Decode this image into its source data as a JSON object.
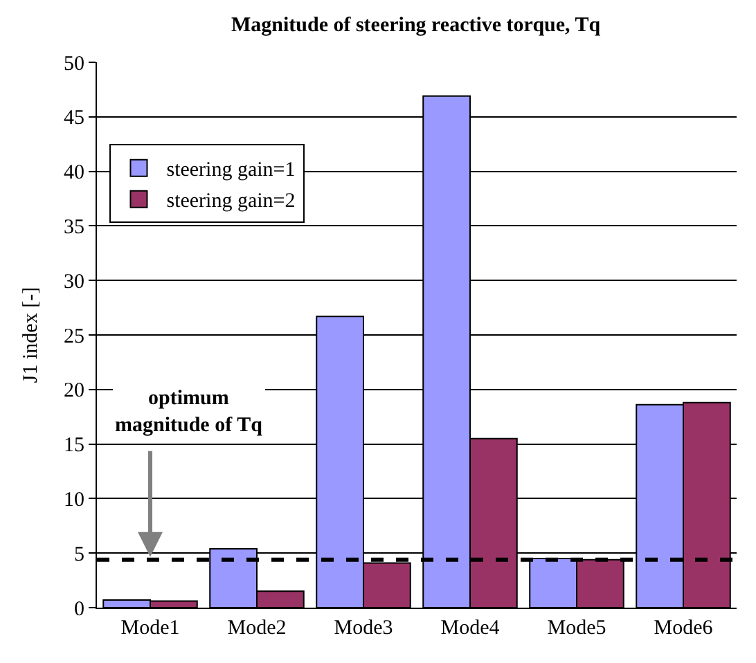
{
  "chart_data": {
    "type": "bar",
    "title": "Magnitude of steering reactive torque, Tq",
    "ylabel": "J1 index [-]",
    "categories": [
      "Mode1",
      "Mode2",
      "Mode3",
      "Mode4",
      "Mode5",
      "Mode6"
    ],
    "series": [
      {
        "name": "steering gain=1",
        "color": "#9999ff",
        "values": [
          0.7,
          5.4,
          26.7,
          46.9,
          4.5,
          18.6
        ]
      },
      {
        "name": "steering gain=2",
        "color": "#993366",
        "values": [
          0.6,
          1.5,
          4.1,
          15.5,
          4.4,
          18.8
        ]
      }
    ],
    "ylim": [
      0,
      50
    ],
    "yticks": [
      0,
      5,
      10,
      15,
      20,
      25,
      30,
      35,
      40,
      45,
      50
    ],
    "grid": "y",
    "legend": "top left",
    "ref_lines": [
      {
        "axis": "y",
        "value": 4.4,
        "color": "#000000",
        "line_style": "dashed"
      }
    ],
    "annotations": [
      {
        "text": "optimum magnitude of Tq",
        "x": "Mode1",
        "y": 4.4
      }
    ]
  }
}
